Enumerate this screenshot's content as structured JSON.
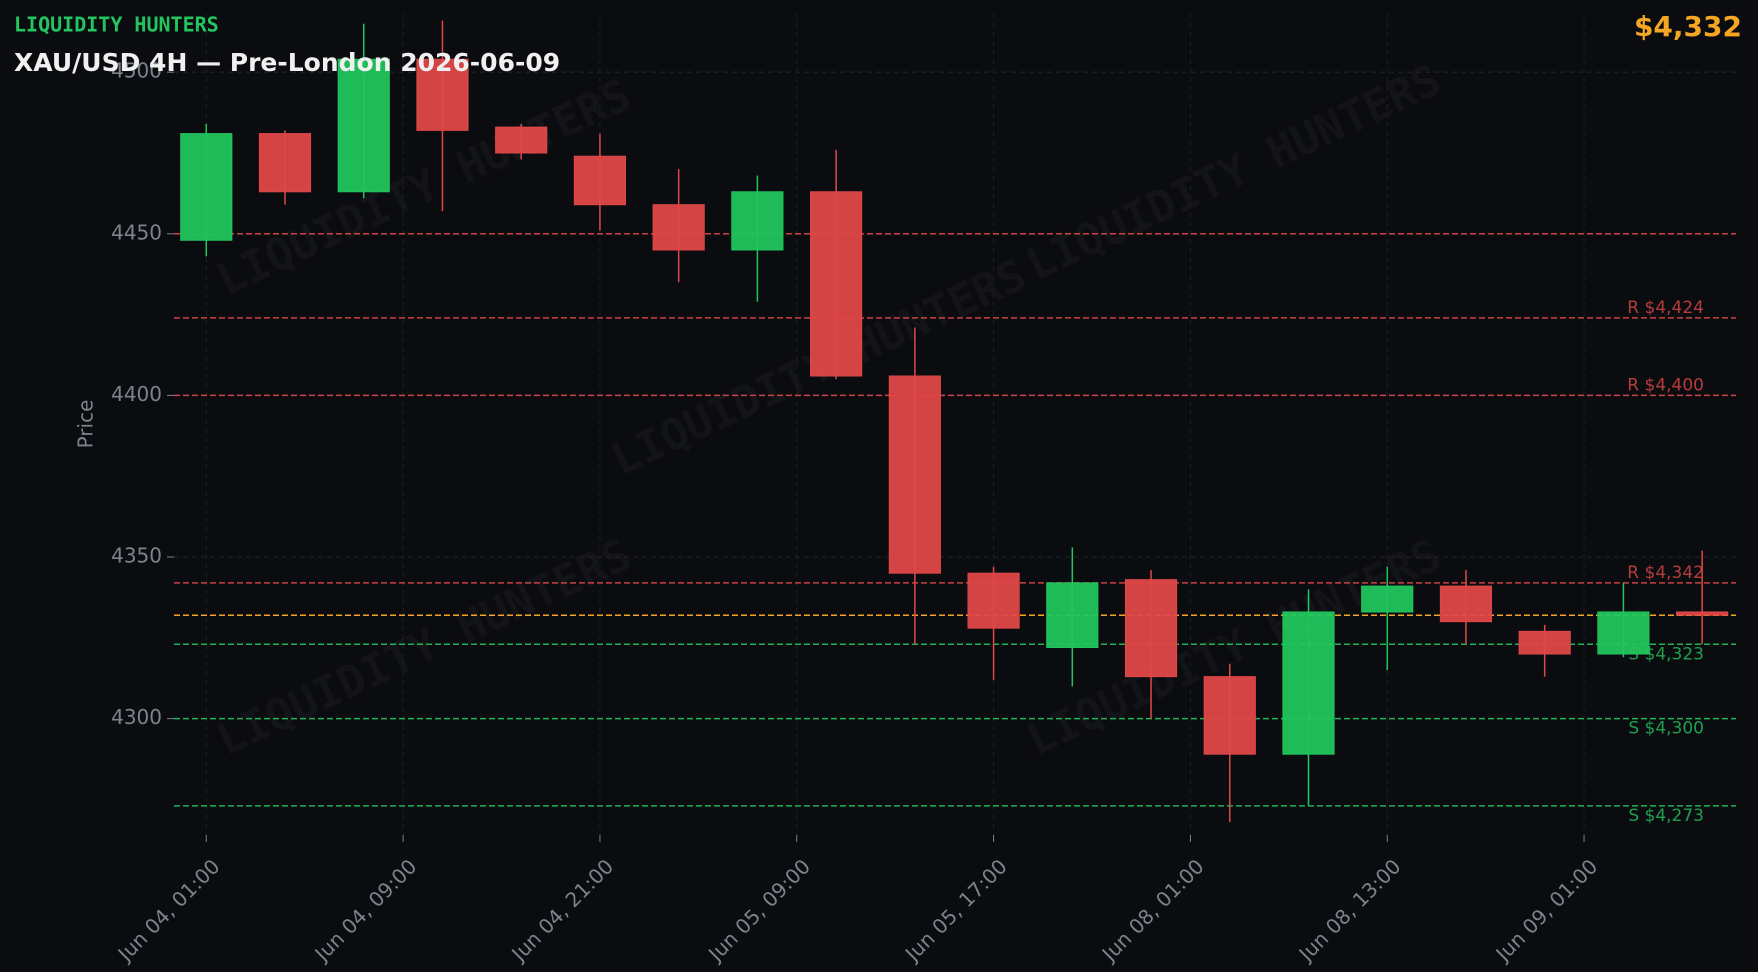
{
  "chart_data": {
    "type": "candlestick",
    "brand": "LIQUIDITY HUNTERS",
    "title": "XAU/USD 4H — Pre-London 2026-06-09",
    "price": {
      "value": 4332,
      "label": "$4,332"
    },
    "price_color": "#f5a623",
    "ylabel": "Price",
    "up_color": "#22c55e",
    "down_color": "#e04848",
    "x": [
      0,
      1,
      2,
      3,
      4,
      5,
      6,
      7,
      8,
      9,
      10,
      11,
      12,
      13,
      14,
      15,
      16,
      17,
      18,
      19
    ],
    "open": [
      4448,
      4481,
      4463,
      4504,
      4483,
      4474,
      4459,
      4445,
      4463,
      4406,
      4345,
      4322,
      4343,
      4313,
      4289,
      4333,
      4341,
      4327,
      4320,
      4333
    ],
    "high": [
      4484,
      4482,
      4515,
      4516,
      4484,
      4481,
      4470,
      4468,
      4476,
      4421,
      4347,
      4353,
      4346,
      4317,
      4340,
      4347,
      4346,
      4329,
      4342,
      4352
    ],
    "low": [
      4443,
      4459,
      4461,
      4457,
      4473,
      4451,
      4435,
      4429,
      4405,
      4323,
      4312,
      4310,
      4300,
      4268,
      4273,
      4315,
      4323,
      4313,
      4319,
      4323
    ],
    "close": [
      4481,
      4463,
      4504,
      4482,
      4475,
      4459,
      4445,
      4463,
      4406,
      4345,
      4328,
      4342,
      4313,
      4289,
      4333,
      4341,
      4330,
      4320,
      4333,
      4332
    ],
    "levels": [
      {
        "value": 4450,
        "color": "#e04848"
      },
      {
        "value": 4424,
        "label": "R $4,424",
        "color": "#e04848"
      },
      {
        "value": 4400,
        "label": "R $4,400",
        "color": "#e04848"
      },
      {
        "value": 4342,
        "label": "R $4,342",
        "color": "#e04848"
      },
      {
        "value": 4323,
        "label": "S $4,323",
        "color": "#22c55e"
      },
      {
        "value": 4300,
        "label": "S $4,300",
        "color": "#22c55e"
      },
      {
        "value": 4273,
        "label": "S $4,273",
        "color": "#22c55e"
      }
    ],
    "xlim": [
      -0.41,
      19.43
    ],
    "xticks": [
      {
        "value": 0,
        "label": "Jun 04, 01:00"
      },
      {
        "value": 2.5,
        "label": "Jun 04, 09:00"
      },
      {
        "value": 5,
        "label": "Jun 04, 21:00"
      },
      {
        "value": 7.5,
        "label": "Jun 05, 09:00"
      },
      {
        "value": 10,
        "label": "Jun 05, 17:00"
      },
      {
        "value": 12.5,
        "label": "Jun 08, 01:00"
      },
      {
        "value": 15,
        "label": "Jun 08, 13:00"
      },
      {
        "value": 17.5,
        "label": "Jun 09, 01:00"
      }
    ],
    "ylim": [
      4264,
      4518
    ],
    "yticks": [
      4300,
      4350,
      4400,
      4450,
      4500
    ],
    "grid": true
  }
}
